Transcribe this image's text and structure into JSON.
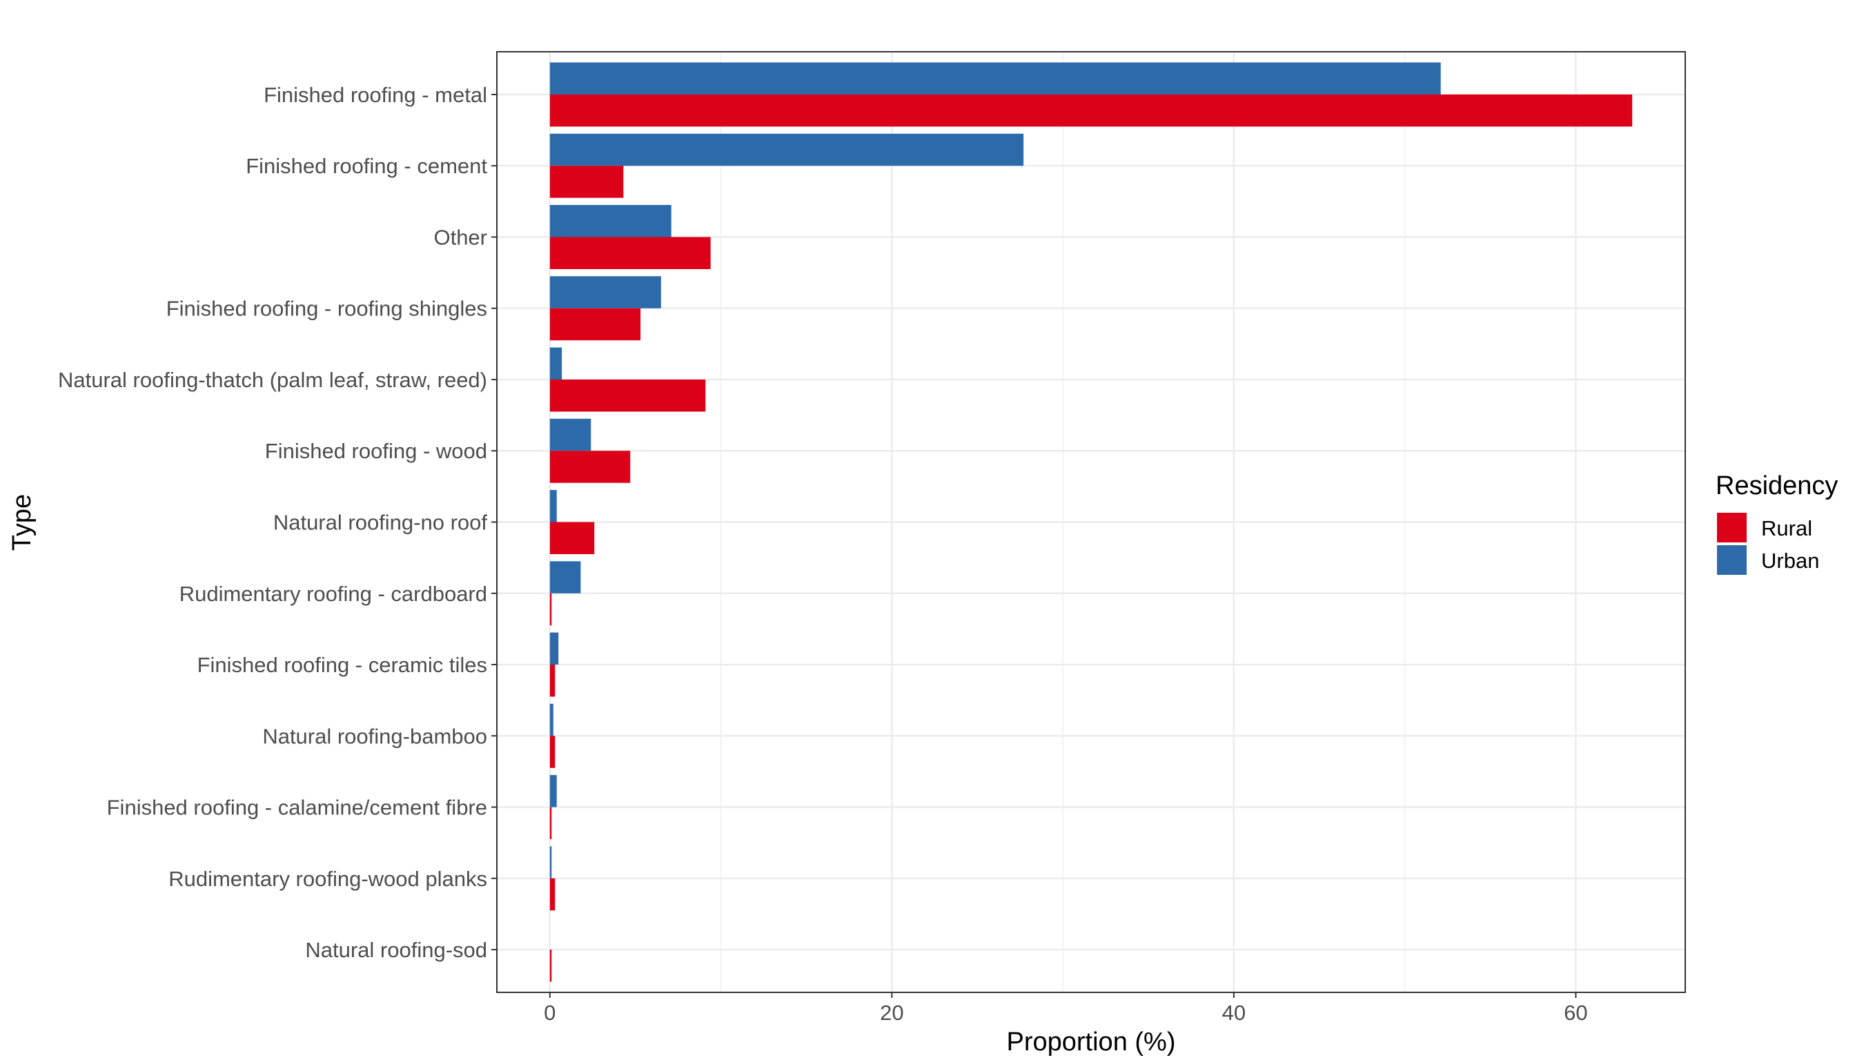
{
  "chart_data": {
    "type": "bar",
    "orientation": "horizontal",
    "xlabel": "Proportion (%)",
    "ylabel": "Type",
    "xlim": [
      -3.1,
      66.4
    ],
    "x_ticks": [
      0,
      20,
      40,
      60
    ],
    "grid": true,
    "legend": {
      "title": "Residency",
      "position": "right"
    },
    "categories": [
      "Finished roofing - metal",
      "Finished roofing - cement",
      "Other",
      "Finished roofing - roofing shingles",
      "Natural roofing-thatch (palm leaf, straw, reed)",
      "Finished roofing - wood",
      "Natural roofing-no roof",
      "Rudimentary roofing - cardboard",
      "Finished roofing - ceramic tiles",
      "Natural roofing-bamboo",
      "Finished roofing - calamine/cement fibre",
      "Rudimentary roofing-wood planks",
      "Natural roofing-sod"
    ],
    "series": [
      {
        "name": "Rural",
        "color": "#DC0018",
        "values": [
          63.3,
          4.3,
          9.4,
          5.3,
          9.1,
          4.7,
          2.6,
          0.1,
          0.3,
          0.3,
          0.1,
          0.3,
          0.1
        ]
      },
      {
        "name": "Urban",
        "color": "#2C6AAA",
        "values": [
          52.1,
          27.7,
          7.1,
          6.5,
          0.7,
          2.4,
          0.4,
          1.8,
          0.5,
          0.2,
          0.4,
          0.1,
          0.0
        ]
      }
    ]
  }
}
